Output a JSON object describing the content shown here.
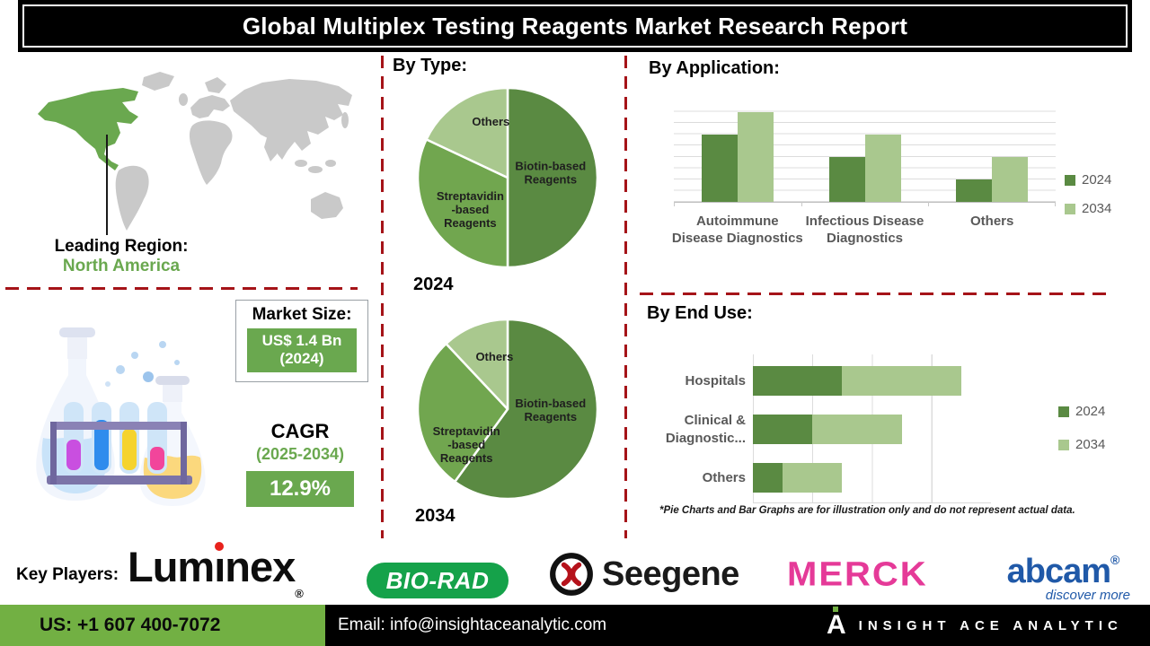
{
  "title": "Global Multiplex Testing Reagents Market Research Report",
  "colors": {
    "green_dark": "#5a8a42",
    "green_mid": "#71a64f",
    "green_light": "#a9c88e",
    "green_accent": "#6aa84f",
    "green_footer": "#72b043",
    "green_biorad": "#15a24a",
    "red_dashed": "#a51318",
    "pink_merck": "#e53a98",
    "blue_abcam": "#2059a8",
    "gray_map": "#c9c9c9",
    "black": "#000000"
  },
  "leading_region": {
    "label": "Leading Region:",
    "value": "North America"
  },
  "market_size": {
    "label": "Market Size:",
    "value": "US$ 1.4 Bn",
    "year": "(2024)"
  },
  "cagr": {
    "label": "CAGR",
    "period": "(2025-2034)",
    "value": "12.9%"
  },
  "sections": {
    "by_type": "By Type:",
    "by_application": "By Application:",
    "by_end_use": "By End Use:"
  },
  "footnote": "*Pie Charts and Bar Graphs are for illustration only and do not represent actual data.",
  "key_players": {
    "label": "Key Players:",
    "luminex": {
      "pre": "Lum",
      "dotless_i": "ı",
      "post": "nex",
      "reg": "®"
    },
    "biorad": "BIO-RAD",
    "seegene": "Seegene",
    "merck": "MERCK",
    "abcam": {
      "name": "abcam",
      "reg": "®",
      "tagline": "discover more"
    }
  },
  "footer": {
    "phone": "US: +1 607 400-7072",
    "email": "Email: info@insightaceanalytic.com",
    "brand": "INSIGHT ACE ANALYTIC"
  },
  "chart_data": [
    {
      "type": "pie",
      "title": "By Type:",
      "caption": "2024",
      "slices": [
        {
          "id": "biotin",
          "name": "Biotin-based Reagents",
          "value": 50,
          "color": "#5a8a42",
          "label_lines": [
            "Biotin-based",
            "Reagents"
          ],
          "label_x": 0.73,
          "label_y": 0.46
        },
        {
          "id": "streptavidin",
          "name": "Streptavidin-based Reagents",
          "value": 32,
          "color": "#71a64f",
          "label_lines": [
            "Streptavidin",
            "-based",
            "Reagents"
          ],
          "label_x": 0.3,
          "label_y": 0.62
        },
        {
          "id": "others",
          "name": "Others",
          "value": 18,
          "color": "#a9c88e",
          "label_lines": [
            "Others"
          ],
          "label_x": 0.41,
          "label_y": 0.22
        }
      ]
    },
    {
      "type": "pie",
      "title": "By Type:",
      "caption": "2034",
      "slices": [
        {
          "id": "biotin",
          "name": "Biotin-based Reagents",
          "value": 60,
          "color": "#5a8a42",
          "label_lines": [
            "Biotin-based",
            "Reagents"
          ],
          "label_x": 0.73,
          "label_y": 0.49
        },
        {
          "id": "streptavidin",
          "name": "Streptavidin-based Reagents",
          "value": 28,
          "color": "#71a64f",
          "label_lines": [
            "Streptavidin",
            "-based",
            "Reagents"
          ],
          "label_x": 0.28,
          "label_y": 0.64
        },
        {
          "id": "others",
          "name": "Others",
          "value": 12,
          "color": "#a9c88e",
          "label_lines": [
            "Others"
          ],
          "label_x": 0.43,
          "label_y": 0.24
        }
      ]
    },
    {
      "type": "bar",
      "title": "By Application:",
      "categories": [
        "Autoimmune Disease Diagnostics",
        "Infectious Disease Diagnostics",
        "Others"
      ],
      "categories_lines": [
        [
          "Autoimmune",
          "Disease Diagnostics"
        ],
        [
          "Infectious Disease",
          "Diagnostics"
        ],
        [
          "Others"
        ]
      ],
      "series": [
        {
          "name": "2024",
          "color": "#5a8a42",
          "values": [
            6,
            4,
            2
          ]
        },
        {
          "name": "2034",
          "color": "#a9c88e",
          "values": [
            8,
            6,
            4
          ]
        }
      ],
      "ylim": [
        0,
        9
      ],
      "gridlines": true,
      "legend_position": "right",
      "note": "illustrative values read from gridline units"
    },
    {
      "type": "bar",
      "subtype": "stacked-horizontal",
      "title": "By End Use:",
      "categories": [
        "Hospitals",
        "Clinical & Diagnostic...",
        "Others"
      ],
      "categories_lines": [
        [
          "Hospitals"
        ],
        [
          "Clinical &",
          "Diagnostic..."
        ],
        [
          "Others"
        ]
      ],
      "series": [
        {
          "name": "2024",
          "color": "#5a8a42",
          "values": [
            1.5,
            1,
            0.5
          ]
        },
        {
          "name": "2034",
          "color": "#a9c88e",
          "values": [
            2,
            1.5,
            1
          ]
        }
      ],
      "xlim": [
        0,
        4
      ],
      "gridlines": true,
      "legend_position": "right",
      "note": "illustrative values read from gridline units"
    }
  ]
}
